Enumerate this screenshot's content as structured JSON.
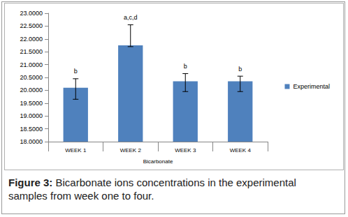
{
  "chart_data": {
    "type": "bar",
    "title": "Figure 3:",
    "subtitle": "Bicarbonate ions concentrations in the experimental samples from week one to four.",
    "x_label": "Bicarbonate",
    "categories": [
      "WEEK 1",
      "WEEK 2",
      "WEEK 3",
      "WEEK 4"
    ],
    "series": [
      {
        "name": "Experimental",
        "color": "#4f81bd",
        "values": [
          20.1,
          21.75,
          20.35,
          20.35
        ]
      }
    ],
    "error_bars": [
      [
        19.65,
        20.45
      ],
      [
        21.7,
        22.55
      ],
      [
        19.95,
        20.65
      ],
      [
        19.95,
        20.55
      ]
    ],
    "annotations": [
      "b",
      "a,c,d",
      "b",
      "b"
    ],
    "ylim": [
      18,
      23
    ],
    "yticks": [
      {
        "value": 18,
        "label": "18.0000"
      },
      {
        "value": 18.5,
        "label": "18.5000"
      },
      {
        "value": 19,
        "label": "19.0000"
      },
      {
        "value": 19.5,
        "label": "19.5000"
      },
      {
        "value": 20,
        "label": "20.0000"
      },
      {
        "value": 20.5,
        "label": "20.5000"
      },
      {
        "value": 21,
        "label": "21.0000"
      },
      {
        "value": 21.5,
        "label": "21.5000"
      },
      {
        "value": 22,
        "label": "22.0000"
      },
      {
        "value": 22.5,
        "label": "22.5000"
      },
      {
        "value": 23,
        "label": "23.0000"
      }
    ],
    "grid": false,
    "legend": "right"
  }
}
